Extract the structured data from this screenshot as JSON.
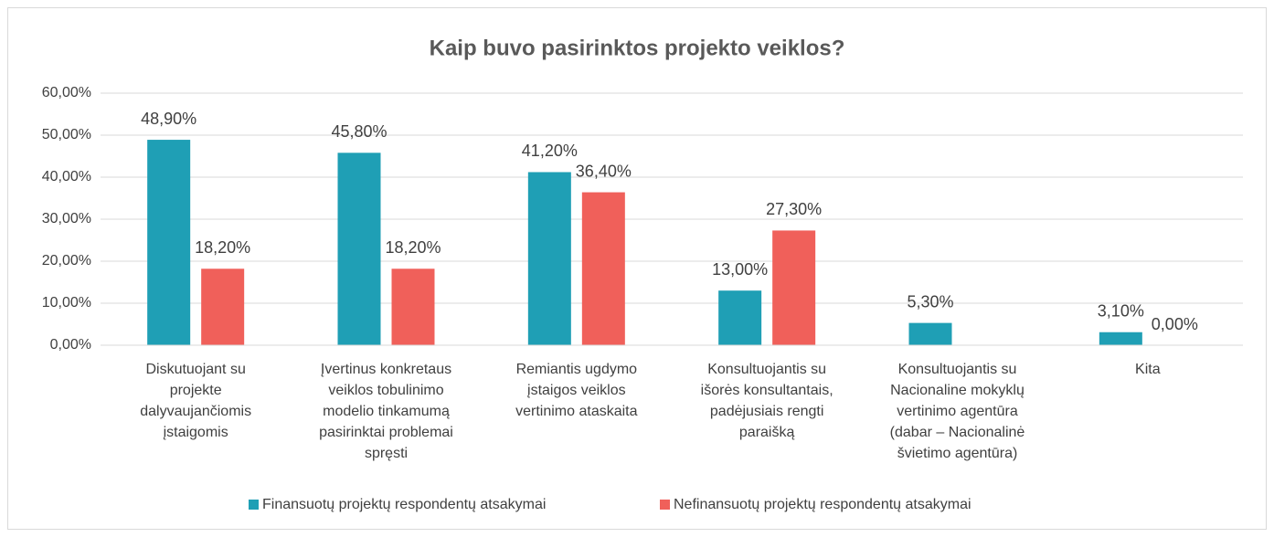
{
  "chart_data": {
    "type": "bar",
    "title": "Kaip buvo pasirinktos projekto veiklos?",
    "categories": [
      "Diskutuojant su projekte dalyvaujančiomis įstaigomis",
      "Įvertinus konkretaus veiklos tobulinimo modelio tinkamumą pasirinktai problemai spręsti",
      "Remiantis ugdymo įstaigos veiklos vertinimo ataskaita",
      "Konsultuojantis su išorės konsultantais, padėjusiais rengti paraišką",
      "Konsultuojantis su Nacionaline mokyklų vertinimo agentūra (dabar – Nacionalinė švietimo agentūra)",
      "Kita"
    ],
    "series": [
      {
        "name": "Finansuotų projektų respondentų atsakymai",
        "color": "#1f9fb5",
        "values": [
          48.9,
          45.8,
          41.2,
          13.0,
          5.3,
          3.1
        ],
        "value_labels": [
          "48,90%",
          "45,80%",
          "41,20%",
          "13,00%",
          "5,30%",
          "3,10%"
        ]
      },
      {
        "name": "Nefinansuotų projektų respondentų atsakymai",
        "color": "#f0605a",
        "values": [
          18.2,
          18.2,
          36.4,
          27.3,
          null,
          0.0
        ],
        "value_labels": [
          "18,20%",
          "18,20%",
          "36,40%",
          "27,30%",
          null,
          "0,00%"
        ]
      }
    ],
    "ylim": [
      0,
      60
    ],
    "yticks": [
      {
        "value": 0,
        "label": "0,00%"
      },
      {
        "value": 10,
        "label": "10,00%"
      },
      {
        "value": 20,
        "label": "20,00%"
      },
      {
        "value": 30,
        "label": "30,00%"
      },
      {
        "value": 40,
        "label": "40,00%"
      },
      {
        "value": 50,
        "label": "50,00%"
      },
      {
        "value": 60,
        "label": "60,00%"
      }
    ],
    "grid": true,
    "legend": "bottom"
  }
}
